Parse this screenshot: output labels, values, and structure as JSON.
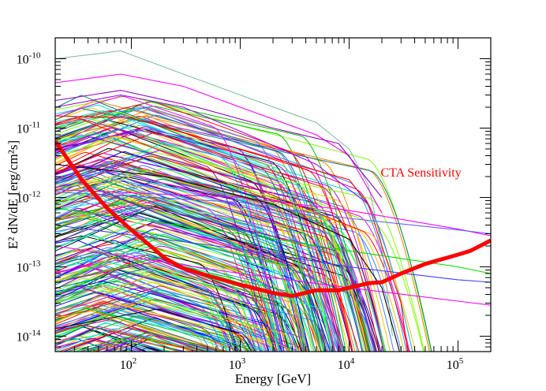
{
  "chart_data": {
    "type": "line",
    "title": "",
    "xlabel": "Energy [GeV]",
    "ylabel": "E² dN/dE [erg/cm²s]",
    "xscale": "log",
    "yscale": "log",
    "xlim": [
      20,
      200000
    ],
    "ylim": [
      6e-15,
      2e-10
    ],
    "grid": false,
    "x_ticks": [
      {
        "value": 100,
        "base": "10",
        "exp": "2"
      },
      {
        "value": 1000,
        "base": "10",
        "exp": "3"
      },
      {
        "value": 10000,
        "base": "10",
        "exp": "4"
      },
      {
        "value": 100000,
        "base": "10",
        "exp": "5"
      }
    ],
    "y_ticks": [
      {
        "value": 1e-14,
        "base": "10",
        "exp": "-14"
      },
      {
        "value": 1e-13,
        "base": "10",
        "exp": "-13"
      },
      {
        "value": 1e-12,
        "base": "10",
        "exp": "-12"
      },
      {
        "value": 1e-11,
        "base": "10",
        "exp": "-11"
      },
      {
        "value": 1e-10,
        "base": "10",
        "exp": "-10"
      }
    ],
    "sensitivity": {
      "name": "CTA Sensitivity",
      "color": "#ff0000",
      "x": [
        20,
        35,
        60,
        100,
        150,
        200,
        300,
        500,
        1000,
        2000,
        3000,
        5000,
        8000,
        10000,
        15000,
        20000,
        30000,
        50000,
        100000,
        130000,
        200000
      ],
      "y": [
        6.5e-12,
        1.8e-12,
        7e-13,
        3.4e-13,
        2e-13,
        1.35e-13,
        9.5e-14,
        7.5e-14,
        5.5e-14,
        4.2e-14,
        3.8e-14,
        4.6e-14,
        4.6e-14,
        5e-14,
        5.8e-14,
        6e-14,
        8e-14,
        1.1e-13,
        1.5e-13,
        1.7e-13,
        2.4e-13
      ]
    },
    "highlighted_series": [
      {
        "color": "#7fbf9f",
        "x": [
          20,
          80,
          300,
          1000,
          5000,
          10000,
          15000,
          20000,
          25000
        ],
        "y": [
          1e-10,
          1.3e-10,
          6e-11,
          3e-11,
          1.2e-11,
          5e-12,
          1.5e-12,
          2e-13,
          1e-14
        ]
      },
      {
        "color": "#ff00ff",
        "x": [
          20,
          80,
          300,
          1000,
          5000,
          10000,
          20000
        ],
        "y": [
          4.5e-11,
          6e-11,
          4e-11,
          2e-11,
          8e-12,
          4e-12,
          6e-13
        ]
      },
      {
        "color": "#a000ff",
        "x": [
          20,
          80,
          300,
          1000,
          5000,
          15000
        ],
        "y": [
          2e-11,
          3e-11,
          2e-11,
          9e-12,
          3e-12,
          8e-13
        ]
      },
      {
        "color": "#9000c0",
        "x": [
          20,
          80,
          400,
          2000,
          8000,
          20000
        ],
        "y": [
          2.5e-11,
          3.5e-11,
          2e-11,
          1e-11,
          6e-12,
          1e-12
        ]
      },
      {
        "color": "#ff0000",
        "x": [
          20,
          100,
          1000,
          10000,
          15000,
          20000,
          30000,
          35000
        ],
        "y": [
          1.5e-11,
          1.4e-11,
          5e-12,
          1.8e-12,
          8e-13,
          2e-13,
          3e-14,
          5e-15
        ]
      },
      {
        "color": "#ff00ff",
        "x": [
          20,
          1000,
          10000,
          100000,
          200000
        ],
        "y": [
          1.3e-12,
          1e-12,
          6.5e-13,
          3.5e-13,
          2.8e-13
        ]
      },
      {
        "color": "#6060ff",
        "x": [
          20,
          1000,
          10000,
          100000,
          200000
        ],
        "y": [
          1.2e-12,
          8.5e-13,
          5e-13,
          3.4e-13,
          3e-13
        ]
      },
      {
        "color": "#00dd00",
        "x": [
          20,
          1000,
          10000,
          100000,
          200000
        ],
        "y": [
          7e-13,
          3e-13,
          1.7e-13,
          1e-13,
          8e-14
        ]
      },
      {
        "color": "#4040ff",
        "x": [
          20,
          1000,
          10000,
          100000,
          200000
        ],
        "y": [
          4e-13,
          1.8e-13,
          1e-13,
          6.5e-14,
          6e-14
        ]
      },
      {
        "color": "#ff00ff",
        "x": [
          20,
          1000,
          10000,
          100000,
          200000
        ],
        "y": [
          2e-13,
          8e-14,
          5e-14,
          3.2e-14,
          2.8e-14
        ]
      },
      {
        "color": "#000000",
        "x": [
          20,
          200,
          2000,
          10000,
          20000,
          30000
        ],
        "y": [
          3e-12,
          2e-12,
          8e-13,
          2.5e-13,
          5e-14,
          5e-15
        ]
      }
    ],
    "bulk_population": {
      "description_count": 320,
      "peak_flux_range": [
        5e-15,
        3e-11
      ],
      "peak_energy_range": [
        30,
        200
      ],
      "cutoff_energy_range": [
        150,
        20000
      ],
      "colors": [
        "#0000ff",
        "#00c000",
        "#ff00ff",
        "#00e0e0",
        "#ffc000",
        "#000000",
        "#ff0000",
        "#80ff00",
        "#8000ff",
        "#00ff80",
        "#ff8000",
        "#4080ff",
        "#c000c0",
        "#008080"
      ]
    },
    "annotations": [
      {
        "text": "CTA Sensitivity",
        "color": "#ff0000",
        "x": 10000,
        "y": 2e-12
      }
    ]
  }
}
